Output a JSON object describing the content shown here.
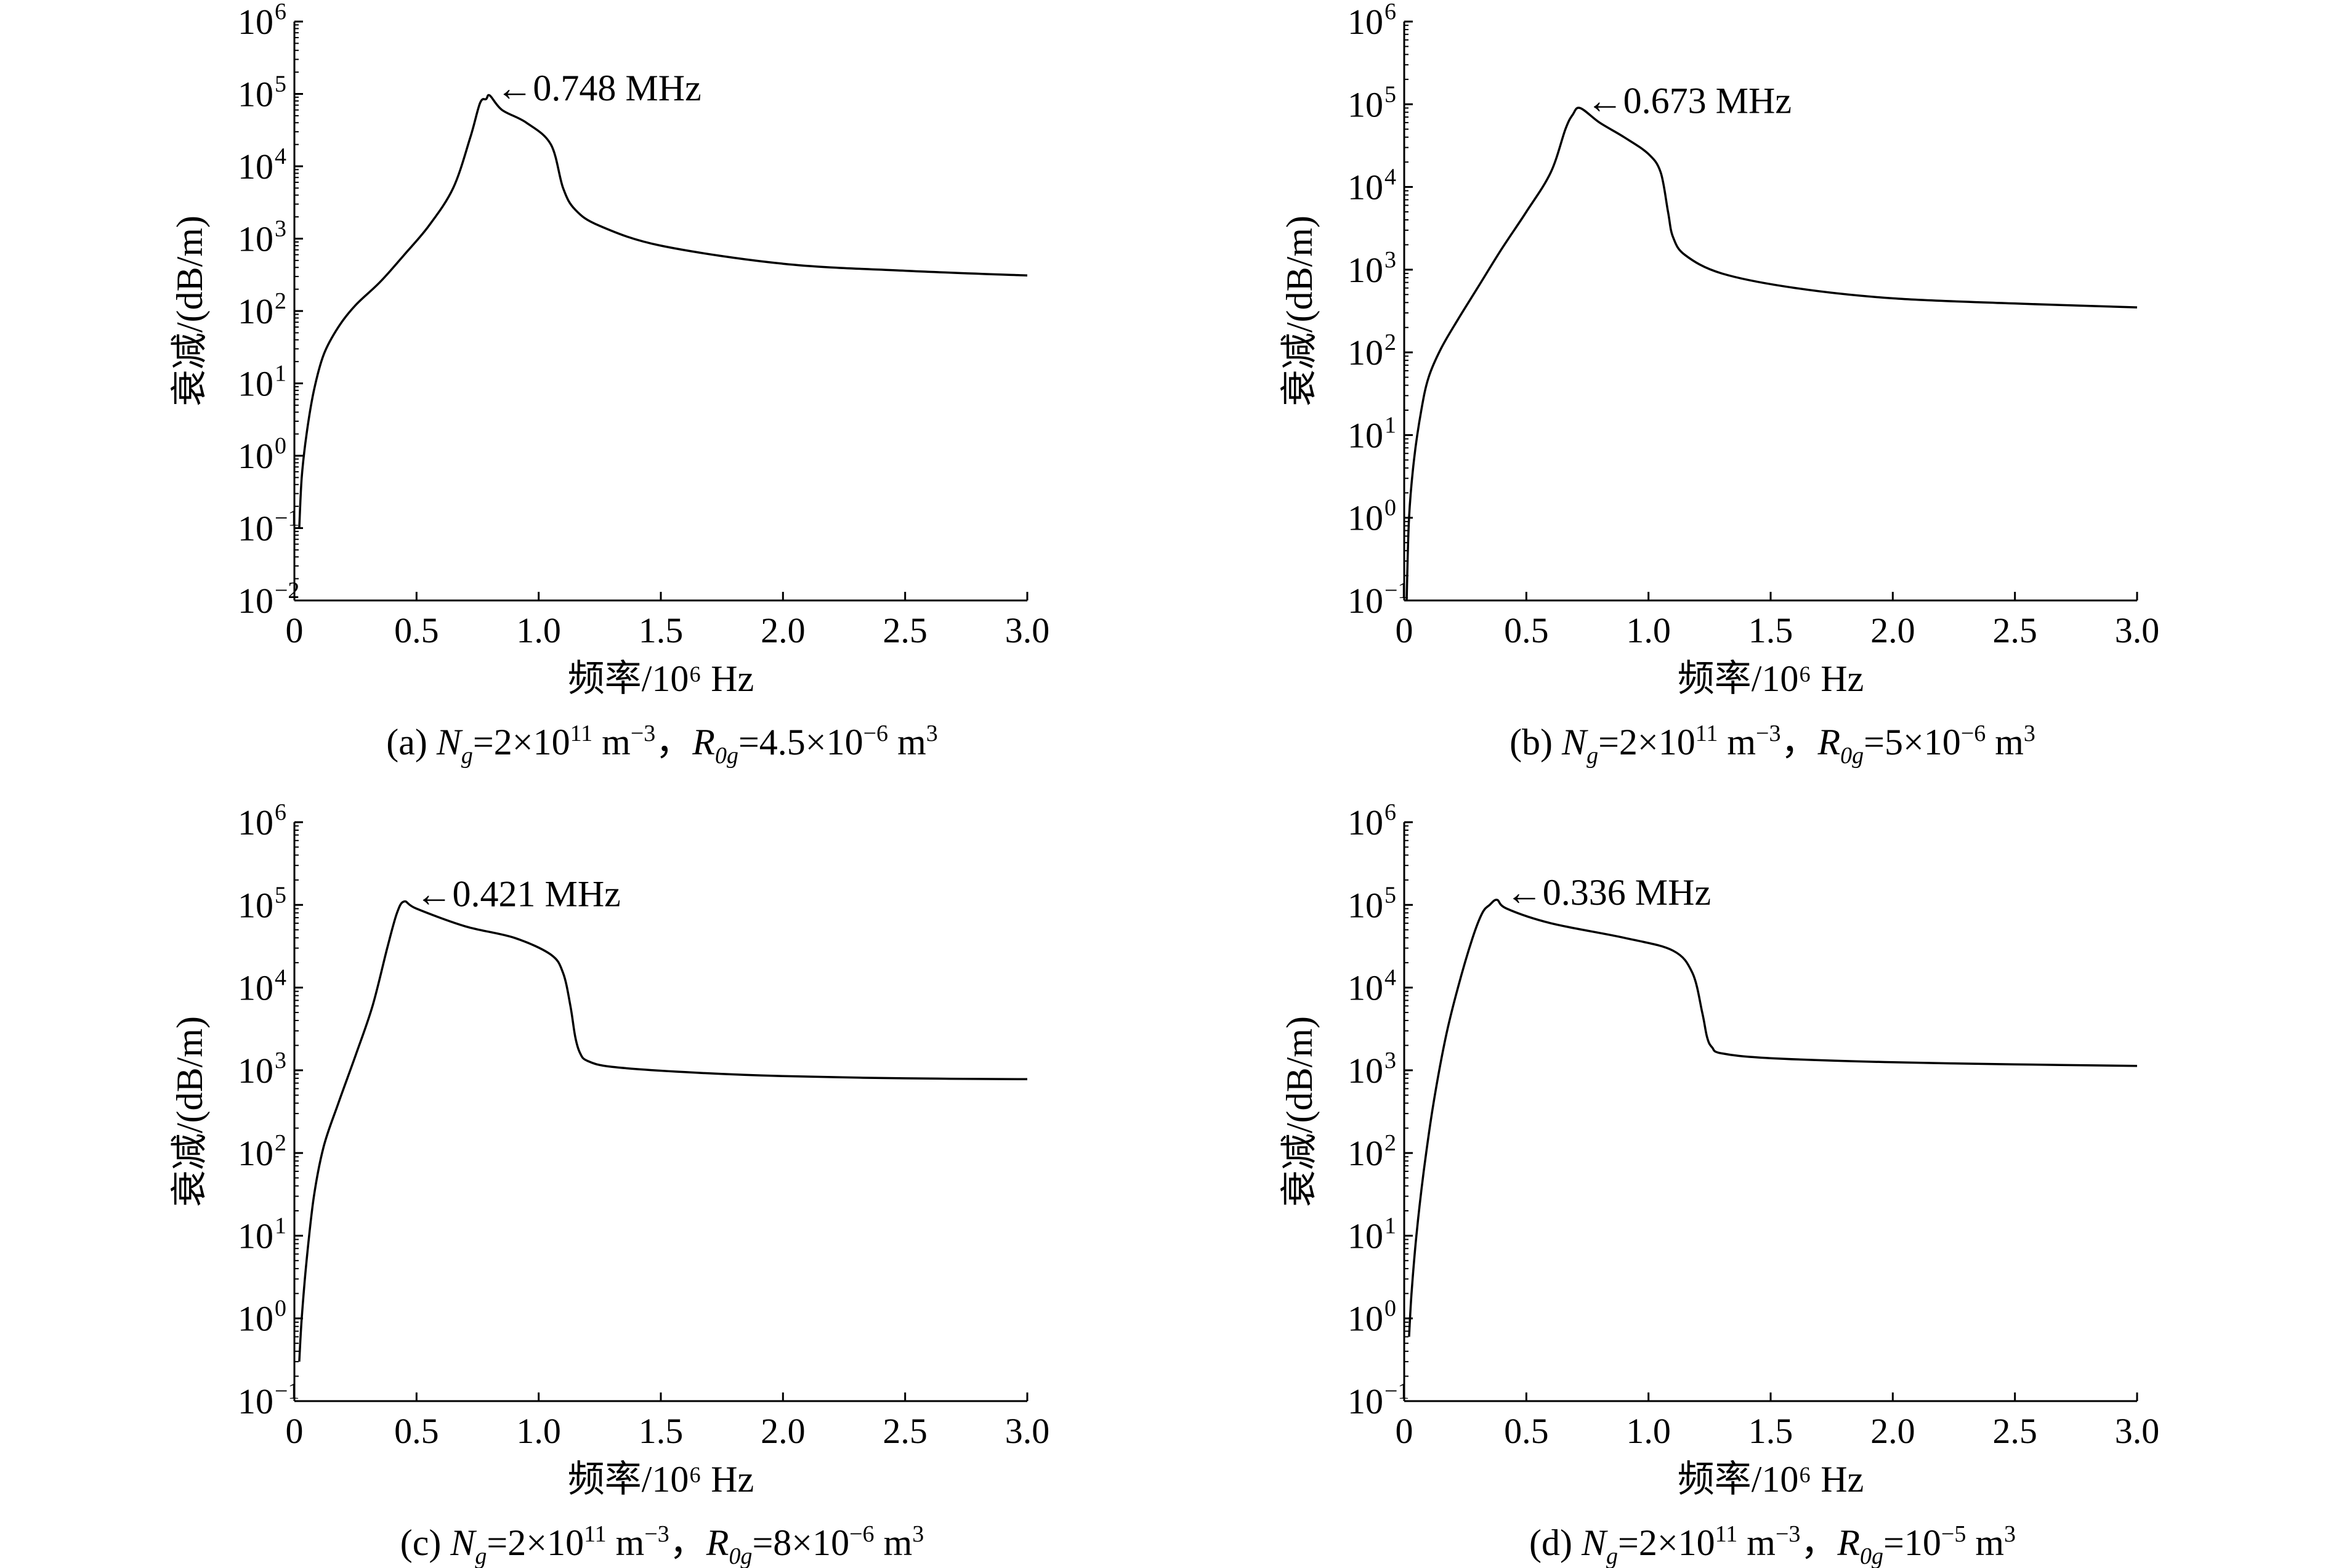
{
  "chart_data": [
    {
      "type": "line",
      "panel": "a",
      "xlabel": "频率/10⁶ Hz",
      "ylabel": "衰减/(dB/m)",
      "xlim": [
        0,
        3.0
      ],
      "xticks": [
        "0",
        "0.5",
        "1.0",
        "1.5",
        "2.0",
        "2.5",
        "3.0"
      ],
      "ylim_exp": [
        -2,
        6
      ],
      "yscale": "log",
      "annotation": "←0.748 MHz",
      "peak_x": 0.78,
      "caption": {
        "label": "(a) ",
        "N": "N",
        "Nsub": "g",
        "eq1": "=2×10",
        "exp1": "11",
        "u1": " m",
        "exp2": "−3",
        "sep": "，",
        "R": "R",
        "Rsub": "0g",
        "eq2": "=4.5×10",
        "exp3": "−6",
        "u2": " m",
        "exp4": "3"
      },
      "series": [
        {
          "x": [
            0.02,
            0.03,
            0.05,
            0.08,
            0.12,
            0.18,
            0.25,
            0.35,
            0.45,
            0.55,
            0.65,
            0.72,
            0.76,
            0.785,
            0.8,
            0.85,
            0.95,
            1.05,
            1.1,
            1.15,
            1.25,
            1.5,
            2.0,
            2.5,
            3.0
          ],
          "y": [
            0.1,
            0.5,
            2,
            8,
            25,
            60,
            120,
            250,
            600,
            1500,
            5000,
            25000,
            75000,
            85000,
            95000,
            60000,
            40000,
            20000,
            5000,
            2500,
            1500,
            800,
            450,
            360,
            310
          ]
        }
      ]
    },
    {
      "type": "line",
      "panel": "b",
      "xlabel": "频率/10⁶ Hz",
      "ylabel": "衰减/(dB/m)",
      "xlim": [
        0,
        3.0
      ],
      "xticks": [
        "0",
        "0.5",
        "1.0",
        "1.5",
        "2.0",
        "2.5",
        "3.0"
      ],
      "ylim_exp": [
        -1,
        6
      ],
      "yscale": "log",
      "annotation": "←0.673 MHz",
      "peak_x": 0.7,
      "caption": {
        "label": "(b) ",
        "N": "N",
        "Nsub": "g",
        "eq1": "=2×10",
        "exp1": "11",
        "u1": " m",
        "exp2": "−3",
        "sep": "，",
        "R": "R",
        "Rsub": "0g",
        "eq2": "=5×10",
        "exp3": "−6",
        "u2": " m",
        "exp4": "3"
      },
      "series": [
        {
          "x": [
            0.01,
            0.02,
            0.04,
            0.07,
            0.1,
            0.15,
            0.22,
            0.3,
            0.4,
            0.5,
            0.6,
            0.66,
            0.69,
            0.72,
            0.8,
            0.9,
            1.0,
            1.05,
            1.08,
            1.1,
            1.15,
            1.3,
            1.6,
            2.0,
            2.5,
            3.0
          ],
          "y": [
            0.1,
            1,
            5,
            20,
            50,
            110,
            250,
            600,
            1800,
            5000,
            15000,
            50000,
            75000,
            90000,
            60000,
            40000,
            25000,
            15000,
            5000,
            2500,
            1500,
            900,
            600,
            450,
            390,
            350
          ]
        }
      ]
    },
    {
      "type": "line",
      "panel": "c",
      "xlabel": "频率/10⁶ Hz",
      "ylabel": "衰减/(dB/m)",
      "xlim": [
        0,
        3.0
      ],
      "xticks": [
        "0",
        "0.5",
        "1.0",
        "1.5",
        "2.0",
        "2.5",
        "3.0"
      ],
      "ylim_exp": [
        -1,
        6
      ],
      "yscale": "log",
      "annotation": "←0.421 MHz",
      "peak_x": 0.45,
      "caption": {
        "label": "(c) ",
        "N": "N",
        "Nsub": "g",
        "eq1": "=2×10",
        "exp1": "11",
        "u1": " m",
        "exp2": "−3",
        "sep": "，",
        "R": "R",
        "Rsub": "0g",
        "eq2": "=8×10",
        "exp3": "−6",
        "u2": " m",
        "exp4": "3"
      },
      "series": [
        {
          "x": [
            0.02,
            0.03,
            0.05,
            0.08,
            0.12,
            0.18,
            0.25,
            0.32,
            0.38,
            0.42,
            0.45,
            0.5,
            0.7,
            0.9,
            1.05,
            1.1,
            1.13,
            1.15,
            1.17,
            1.2,
            1.3,
            1.6,
            2.0,
            2.5,
            3.0
          ],
          "y": [
            0.3,
            1,
            5,
            30,
            120,
            400,
            1500,
            6000,
            30000,
            80000,
            110000,
            90000,
            55000,
            40000,
            25000,
            15000,
            6000,
            2500,
            1600,
            1300,
            1100,
            950,
            850,
            800,
            780
          ]
        }
      ]
    },
    {
      "type": "line",
      "panel": "d",
      "xlabel": "频率/10⁶ Hz",
      "ylabel": "衰减/(dB/m)",
      "xlim": [
        0,
        3.0
      ],
      "xticks": [
        "0",
        "0.5",
        "1.0",
        "1.5",
        "2.0",
        "2.5",
        "3.0"
      ],
      "ylim_exp": [
        -1,
        6
      ],
      "yscale": "log",
      "annotation": "←0.336 MHz",
      "peak_x": 0.37,
      "caption": {
        "label": "(d) ",
        "N": "N",
        "Nsub": "g",
        "eq1": "=2×10",
        "exp1": "11",
        "u1": " m",
        "exp2": "−3",
        "sep": "，",
        "R": "R",
        "Rsub": "0g",
        "eq2": "=10",
        "exp3": "−5",
        "u2": " m",
        "exp4": "3"
      },
      "series": [
        {
          "x": [
            0.02,
            0.03,
            0.05,
            0.08,
            0.12,
            0.17,
            0.22,
            0.28,
            0.32,
            0.35,
            0.38,
            0.42,
            0.6,
            0.9,
            1.1,
            1.18,
            1.22,
            1.24,
            1.26,
            1.3,
            1.5,
            2.0,
            2.5,
            3.0
          ],
          "y": [
            0.6,
            2,
            10,
            60,
            400,
            2500,
            10000,
            40000,
            80000,
            100000,
            115000,
            90000,
            60000,
            40000,
            28000,
            15000,
            5000,
            2500,
            1900,
            1600,
            1400,
            1250,
            1180,
            1130
          ]
        }
      ]
    }
  ]
}
